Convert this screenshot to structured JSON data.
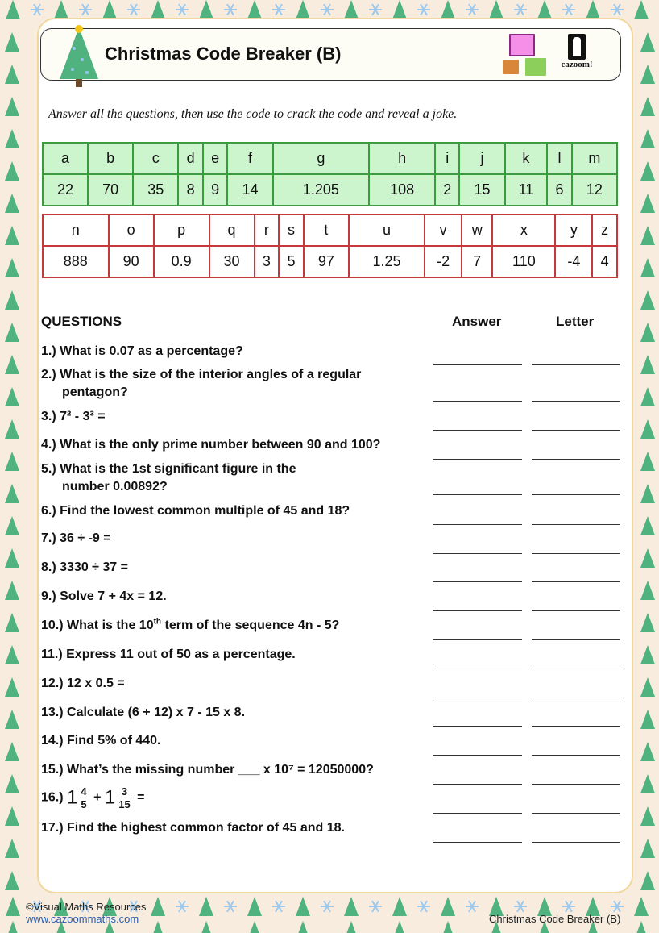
{
  "header": {
    "title": "Christmas Code Breaker (B)",
    "logo_text": "cazoom!"
  },
  "intro": "Answer all the questions, then use the code to crack the code and reveal a joke.",
  "code_table_1": {
    "letters": [
      "a",
      "b",
      "c",
      "d",
      "e",
      "f",
      "g",
      "h",
      "i",
      "j",
      "k",
      "l",
      "m"
    ],
    "values": [
      "22",
      "70",
      "35",
      "8",
      "9",
      "14",
      "1.205",
      "108",
      "2",
      "15",
      "11",
      "6",
      "12"
    ]
  },
  "code_table_2": {
    "letters": [
      "n",
      "o",
      "p",
      "q",
      "r",
      "s",
      "t",
      "u",
      "v",
      "w",
      "x",
      "y",
      "z"
    ],
    "values": [
      "888",
      "90",
      "0.9",
      "30",
      "3",
      "5",
      "97",
      "1.25",
      "-2",
      "7",
      "110",
      "-4",
      "4"
    ]
  },
  "questions_header": {
    "questions": "QUESTIONS",
    "answer": "Answer",
    "letter": "Letter"
  },
  "questions": [
    "1.) What is 0.07 as a percentage?",
    [
      "2.) What is the size of the interior angles of a regular",
      "pentagon?"
    ],
    "3.) 7² - 3³ =",
    "4.) What is the only prime number between 90 and 100?",
    [
      "5.) What is the 1st significant figure in the",
      "number 0.00892?"
    ],
    "6.) Find the lowest common multiple of 45 and 18?",
    "7.) 36 ÷ -9 =",
    "8.) 3330 ÷ 37 =",
    "9.) Solve 7 + 4x = 12.",
    [
      "10.) What is the 10",
      "th",
      " term of the sequence 4n - 5?"
    ],
    "11.) Express 11 out of 50 as a percentage.",
    "12.) 12 x 0.5 =",
    "13.) Calculate (6 + 12) x 7 - 15 x 8.",
    "14.) Find 5% of 440.",
    "15.) What’s the missing number ___ x 10⁷ = 12050000?",
    {
      "label": "16.)",
      "whole1": "1",
      "num1": "4",
      "den1": "5",
      "op": "+",
      "whole2": "1",
      "num2": "3",
      "den2": "15",
      "eq": "="
    },
    "17.) Find the highest common factor of 45 and 18."
  ],
  "footer": {
    "copyright": "©Visual Maths Resources",
    "url": "www.cazoommaths.com",
    "title": "Christmas Code Breaker (B)"
  },
  "colors": {
    "tree": "#4fb27f",
    "snowflake": "#9cc8ee",
    "table1_border": "#3a9c3a",
    "table1_fill": "#cdf5cd",
    "table2_border": "#c8373b"
  }
}
